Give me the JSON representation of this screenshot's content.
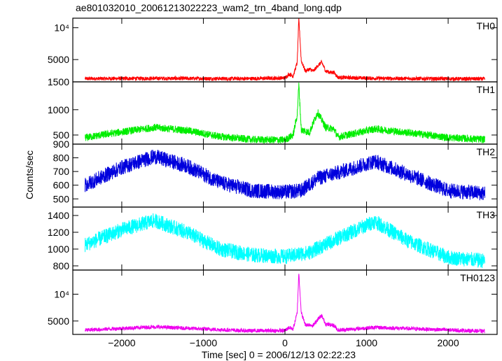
{
  "title": "ae801032010_20061213022223_wam2_trn_4band_long.qdp",
  "chart_data": {
    "type": "line",
    "title": "ae801032010_20061213022223_wam2_trn_4band_long.qdp",
    "xlabel": "Time [sec] 0 = 2006/12/13 02:22:23",
    "ylabel": "Counts/sec",
    "xlim": [
      -2600,
      2600
    ],
    "x_ticks": [
      -2000,
      -1000,
      0,
      1000,
      2000
    ],
    "x_tick_labels": [
      "−2000",
      "−1000",
      "0",
      "1000",
      "2000"
    ],
    "panels": [
      {
        "name": "TH0",
        "color": "#ff0000",
        "ylim": [
          1500,
          11500
        ],
        "y_ticks": [
          5000,
          10000
        ],
        "y_tick_labels": [
          "5000",
          "10⁴"
        ],
        "bottom_label": "1500",
        "x": [
          -2450,
          -1600,
          -500,
          0,
          50,
          100,
          150,
          170,
          200,
          250,
          300,
          350,
          400,
          450,
          500,
          550,
          600,
          650,
          1100,
          2450
        ],
        "y": [
          2000,
          2050,
          2000,
          2100,
          2700,
          2400,
          4500,
          11500,
          4800,
          3200,
          3500,
          3200,
          4000,
          4600,
          3200,
          3000,
          3000,
          2200,
          2050,
          1950
        ]
      },
      {
        "name": "TH1",
        "color": "#00ee00",
        "ylim": [
          320,
          1550
        ],
        "y_ticks": [
          500,
          1000
        ],
        "y_tick_labels": [
          "500",
          "1000"
        ],
        "x": [
          -2450,
          -2000,
          -1600,
          -1200,
          -800,
          -400,
          0,
          100,
          150,
          170,
          200,
          300,
          400,
          500,
          600,
          650,
          1100,
          1600,
          2000,
          2450
        ],
        "y": [
          450,
          560,
          650,
          590,
          470,
          410,
          400,
          500,
          900,
          1500,
          600,
          550,
          950,
          650,
          620,
          460,
          620,
          530,
          450,
          410
        ]
      },
      {
        "name": "TH2",
        "color": "#0000dd",
        "ylim": [
          440,
          900
        ],
        "y_ticks": [
          500,
          600,
          700,
          800,
          900
        ],
        "y_tick_labels": [
          "500",
          "600",
          "700",
          "800",
          "900"
        ],
        "x": [
          -2450,
          -2000,
          -1600,
          -1200,
          -800,
          -400,
          0,
          200,
          400,
          700,
          1100,
          1500,
          2000,
          2450
        ],
        "y": [
          600,
          730,
          810,
          740,
          620,
          560,
          550,
          560,
          650,
          700,
          775,
          680,
          560,
          540
        ]
      },
      {
        "name": "TH3",
        "color": "#00ffff",
        "ylim": [
          750,
          1500
        ],
        "y_ticks": [
          800,
          1000,
          1200,
          1400
        ],
        "y_tick_labels": [
          "800",
          "1000",
          "1200",
          "1400"
        ],
        "x": [
          -2450,
          -2000,
          -1600,
          -1200,
          -800,
          -400,
          0,
          300,
          700,
          1100,
          1500,
          2000,
          2450
        ],
        "y": [
          1050,
          1230,
          1340,
          1200,
          1000,
          930,
          910,
          960,
          1150,
          1330,
          1100,
          900,
          860
        ]
      },
      {
        "name": "TH0123",
        "color": "#ee00ee",
        "ylim": [
          2500,
          14500
        ],
        "y_ticks": [
          5000,
          10000
        ],
        "y_tick_labels": [
          "5000",
          "10⁴"
        ],
        "x": [
          -2450,
          -1600,
          -500,
          0,
          50,
          100,
          150,
          170,
          200,
          250,
          300,
          350,
          400,
          450,
          500,
          600,
          650,
          1100,
          2450
        ],
        "y": [
          3300,
          3900,
          3200,
          3200,
          3800,
          3500,
          6500,
          14000,
          6500,
          4300,
          4300,
          4200,
          5300,
          6000,
          4400,
          4200,
          3300,
          3800,
          3100
        ]
      }
    ]
  }
}
